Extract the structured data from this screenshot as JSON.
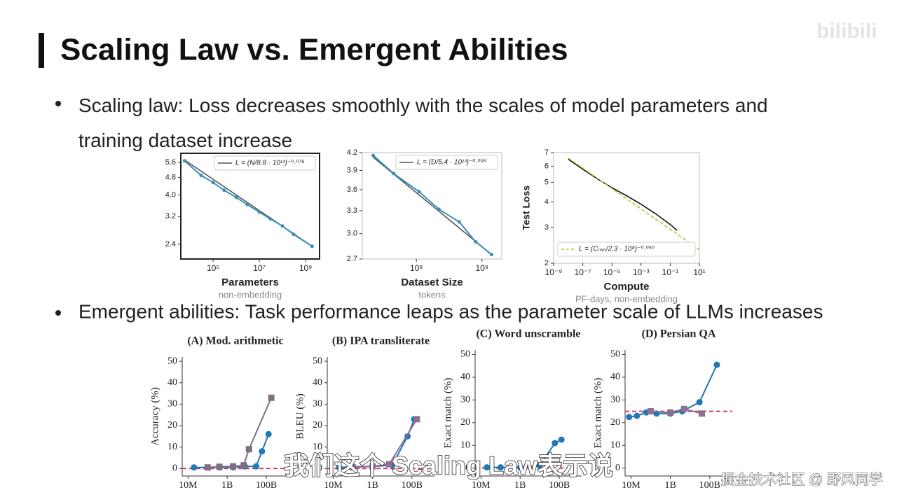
{
  "title": "Scaling Law vs. Emergent Abilities",
  "bullets": [
    "Scaling law: Loss decreases smoothly with the scales of model parameters and training dataset increase",
    "Emergent abilities: Task performance leaps as the parameter scale of LLMs increases"
  ],
  "logo": "bilibili",
  "caption": "我们这个 Scaling Law表示说",
  "watermark": "掘金技术社区 @ 野风同学",
  "chart_data": [
    {
      "type": "line",
      "xlabel": "Parameters",
      "xsublabel": "non-embedding",
      "xlog": true,
      "ylog": true,
      "xlim": [
        4000,
        4000000000
      ],
      "ylim": [
        2.06,
        6.16
      ],
      "xticks": [
        {
          "value": 100000,
          "label": "10⁵"
        },
        {
          "value": 10000000,
          "label": "10⁷"
        },
        {
          "value": 1000000000,
          "label": "10⁹"
        }
      ],
      "yticks": [
        2.4,
        3.2,
        {
          "value": 4,
          "label": "4.0"
        },
        4.8,
        5.6
      ],
      "legend": "upper right",
      "series": [
        {
          "name": "L = (N/8.8 · 10¹³)⁻⁰·⁰⁷⁶",
          "color": "#555555",
          "x": [
            5800,
            1900000000
          ],
          "values": [
            5.75,
            2.35
          ]
        },
        {
          "color": "#3a8fb7",
          "marker": "circle",
          "x": [
            5800,
            30000,
            100000,
            300000,
            1000000,
            3000000,
            10000000,
            30000000,
            100000000,
            300000000,
            1900000000
          ],
          "values": [
            5.7,
            4.9,
            4.55,
            4.2,
            3.9,
            3.62,
            3.35,
            3.12,
            2.9,
            2.66,
            2.35
          ]
        }
      ]
    },
    {
      "type": "line",
      "xlabel": "Dataset Size",
      "xsublabel": "tokens",
      "xlog": true,
      "ylog": true,
      "xlim": [
        15000000,
        2000000000
      ],
      "ylim": [
        2.7,
        4.2
      ],
      "xticks": [
        {
          "value": 100000000,
          "label": "10⁸"
        },
        {
          "value": 1000000000,
          "label": "10⁹"
        }
      ],
      "yticks": [
        2.7,
        {
          "value": 3,
          "label": "3.0"
        },
        3.3,
        3.6,
        3.9,
        4.2
      ],
      "legend": "upper right",
      "series": [
        {
          "name": "L = (D/5.4 · 10¹³)⁻⁰·⁰⁹⁵",
          "color": "#555555",
          "x": [
            22000000,
            1400000000
          ],
          "values": [
            4.12,
            2.75
          ]
        },
        {
          "color": "#3a8fb7",
          "marker": "circle",
          "x": [
            22000000,
            45000000,
            110000000,
            220000000,
            450000000,
            800000000,
            1400000000
          ],
          "values": [
            4.15,
            3.85,
            3.57,
            3.32,
            3.15,
            2.9,
            2.75
          ]
        }
      ]
    },
    {
      "type": "line",
      "xlabel": "Compute",
      "xsublabel": "PF-days, non-embedding",
      "ylabel": "Test Loss",
      "xlog": true,
      "ylog": true,
      "xlim": [
        1e-09,
        10
      ],
      "ylim": [
        2,
        7
      ],
      "xticks": [
        {
          "value": 1e-09,
          "label": "10⁻⁹"
        },
        {
          "value": 1e-07,
          "label": "10⁻⁷"
        },
        {
          "value": 1e-05,
          "label": "10⁻⁵"
        },
        {
          "value": 0.001,
          "label": "10⁻³"
        },
        {
          "value": 0.1,
          "label": "10⁻¹"
        },
        {
          "value": 10,
          "label": "10¹"
        }
      ],
      "yticks": [
        2,
        3,
        4,
        5,
        6,
        7
      ],
      "legend": "lower left",
      "series": [
        {
          "color": "#111111",
          "x": [
            1e-08,
            1e-07,
            1e-06,
            1e-05,
            0.0001,
            0.001,
            0.01,
            0.1,
            0.3
          ],
          "values": [
            6.5,
            5.8,
            5.2,
            4.7,
            4.3,
            3.9,
            3.5,
            3.1,
            2.9
          ]
        },
        {
          "name": "L = (Cₘᵢₙ/2.3 · 10⁸)⁻⁰·⁰⁵⁰",
          "color": "#b5c934",
          "dash": true,
          "x": [
            1e-08,
            10
          ],
          "values": [
            6.59,
            2.33
          ]
        }
      ]
    },
    {
      "type": "line",
      "title": "(A) Mod. arithmetic",
      "ylabel": "Accuracy (%)",
      "xlog": true,
      "xlim": [
        5000000,
        1400000000000
      ],
      "ylim": [
        -3.5,
        52
      ],
      "xticks": [
        {
          "value": 10000000,
          "label": "10M"
        },
        {
          "value": 1000000000,
          "label": "1B"
        },
        {
          "value": 100000000000,
          "label": "100B"
        }
      ],
      "yticks": [
        0,
        10,
        20,
        30,
        40,
        50
      ],
      "reference_line": 0,
      "reference_color": "#d0406a",
      "series": [
        {
          "color": "#1f77b4",
          "marker": "circle",
          "x": [
            20000000,
            100000000,
            400000000,
            2000000000,
            8000000000,
            30000000000,
            60000000000,
            130000000000
          ],
          "values": [
            0.5,
            0.5,
            0.5,
            0.5,
            1,
            1,
            8,
            16
          ]
        },
        {
          "color": "#7f6f7f",
          "marker": "square",
          "x": [
            100000000,
            400000000,
            2000000000,
            7000000000,
            13000000000,
            180000000000
          ],
          "values": [
            0.5,
            0.8,
            1,
            1.5,
            9,
            33
          ]
        }
      ]
    },
    {
      "type": "line",
      "title": "(B) IPA transliterate",
      "ylabel": "BLEU (%)",
      "xlog": true,
      "xlim": [
        5000000,
        1400000000000
      ],
      "ylim": [
        -3.5,
        52
      ],
      "xticks": [
        {
          "value": 10000000,
          "label": "10M"
        },
        {
          "value": 1000000000,
          "label": "1B"
        },
        {
          "value": 100000000000,
          "label": "100B"
        }
      ],
      "yticks": [
        0,
        10,
        20,
        30,
        40,
        50
      ],
      "reference_line": 0,
      "reference_color": "#d0406a",
      "series": [
        {
          "color": "#1f77b4",
          "marker": "circle",
          "x": [
            20000000,
            100000000,
            1000000000,
            10000000000,
            60000000000,
            130000000000
          ],
          "values": [
            0.5,
            0.8,
            1,
            1.5,
            15,
            23
          ]
        },
        {
          "color": "#8e6f90",
          "marker": "square",
          "x": [
            100000000,
            1000000000,
            7000000000,
            180000000000
          ],
          "values": [
            0.5,
            1,
            2,
            23
          ]
        }
      ]
    },
    {
      "type": "line",
      "title": "(C) Word unscramble",
      "ylabel": "Exact match (%)",
      "xlog": true,
      "xlim": [
        5000000,
        1400000000000
      ],
      "ylim": [
        -3.5,
        52
      ],
      "xticks": [
        {
          "value": 10000000,
          "label": "10M"
        },
        {
          "value": 1000000000,
          "label": "1B"
        },
        {
          "value": 100000000000,
          "label": "100B"
        }
      ],
      "yticks": [
        0,
        10,
        20,
        30,
        40,
        50
      ],
      "reference_line": 0,
      "reference_color": "#d0406a",
      "series": [
        {
          "color": "#1f77b4",
          "marker": "circle",
          "x": [
            20000000,
            100000000,
            1000000000,
            10000000000,
            60000000000,
            130000000000
          ],
          "values": [
            0.3,
            0.3,
            0.3,
            1,
            11,
            12.5
          ]
        }
      ]
    },
    {
      "type": "line",
      "title": "(D) Persian QA",
      "ylabel": "Exact match (%)",
      "xlog": true,
      "xlim": [
        5000000,
        1400000000000
      ],
      "ylim": [
        -3.5,
        52
      ],
      "xticks": [
        {
          "value": 10000000,
          "label": "10M"
        },
        {
          "value": 1000000000,
          "label": "1B"
        },
        {
          "value": 100000000000,
          "label": "100B"
        }
      ],
      "yticks": [
        0,
        10,
        20,
        30,
        40,
        50
      ],
      "reference_line": 25,
      "reference_color": "#d0406a",
      "series": [
        {
          "color": "#1f77b4",
          "marker": "circle",
          "x": [
            8000000,
            20000000,
            60000000,
            200000000,
            1000000000,
            4000000000,
            30000000000,
            230000000000
          ],
          "values": [
            22.5,
            23,
            24.5,
            24,
            24,
            25,
            29,
            45.5
          ]
        },
        {
          "color": "#8e6f90",
          "marker": "square",
          "x": [
            100000000,
            1000000000,
            5000000000,
            40000000000
          ],
          "values": [
            25,
            24.5,
            26,
            24
          ]
        }
      ]
    }
  ]
}
